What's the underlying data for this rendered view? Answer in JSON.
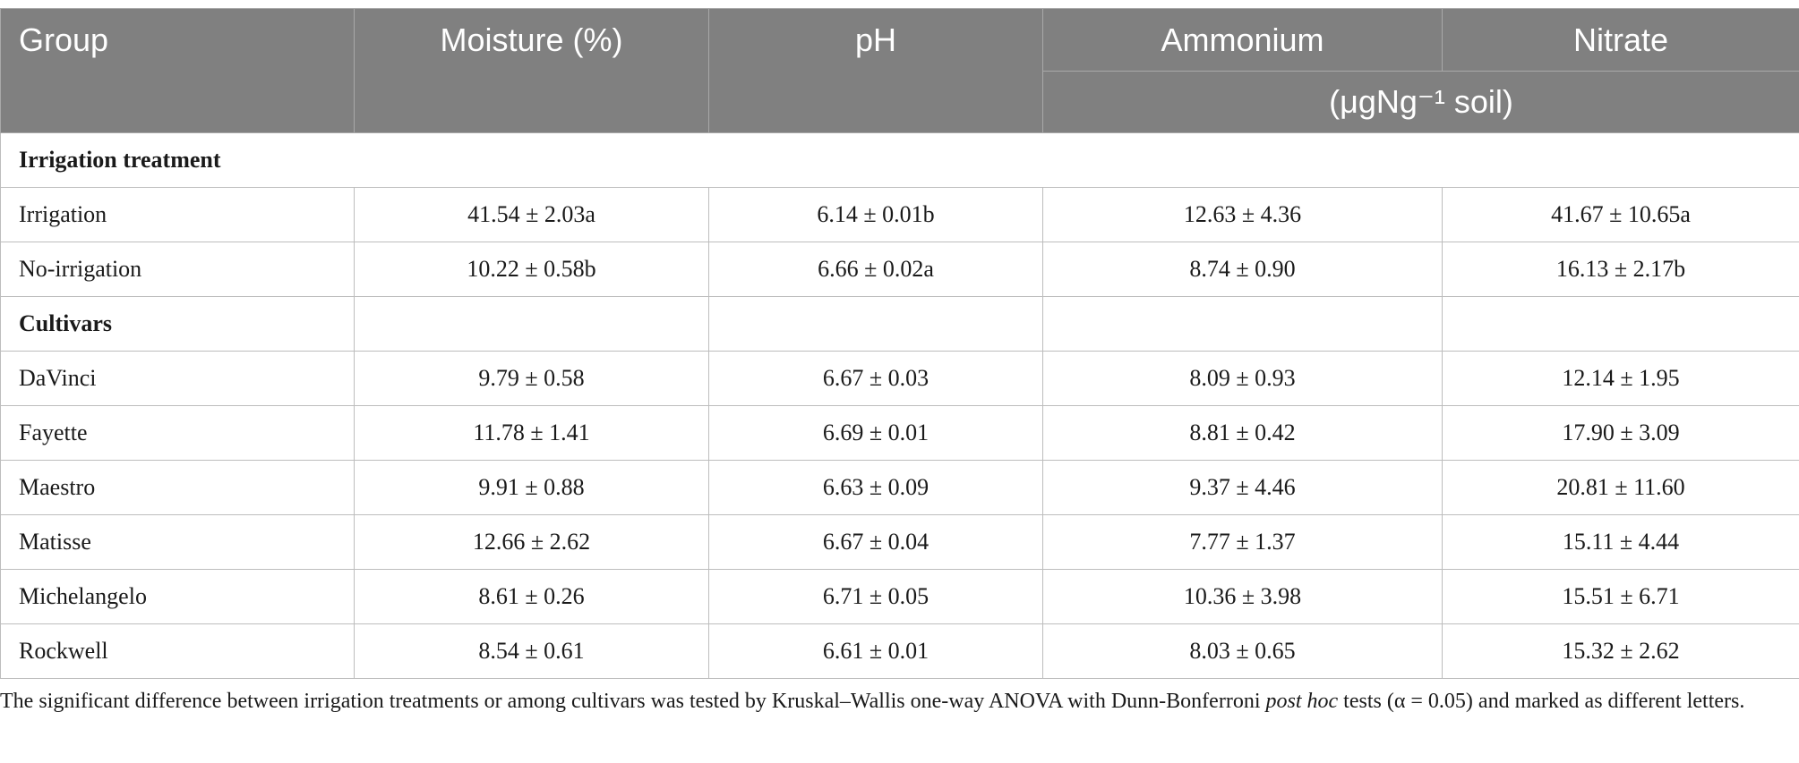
{
  "header": {
    "group": "Group",
    "moisture": "Moisture (%)",
    "ph": "pH",
    "ammonium": "Ammonium",
    "nitrate": "Nitrate",
    "unit": "(μgNg⁻¹ soil)"
  },
  "sections": [
    {
      "title": "Irrigation treatment",
      "rows": [
        [
          "Irrigation",
          "41.54 ± 2.03a",
          "6.14 ± 0.01b",
          "12.63 ± 4.36",
          "41.67 ± 10.65a"
        ],
        [
          "No-irrigation",
          "10.22 ± 0.58b",
          "6.66 ± 0.02a",
          "8.74 ± 0.90",
          "16.13 ± 2.17b"
        ]
      ]
    },
    {
      "title": "Cultivars",
      "rows": [
        [
          "DaVinci",
          "9.79 ± 0.58",
          "6.67 ± 0.03",
          "8.09 ± 0.93",
          "12.14 ± 1.95"
        ],
        [
          "Fayette",
          "11.78 ± 1.41",
          "6.69 ± 0.01",
          "8.81 ± 0.42",
          "17.90 ± 3.09"
        ],
        [
          "Maestro",
          "9.91 ± 0.88",
          "6.63 ± 0.09",
          "9.37 ± 4.46",
          "20.81 ± 11.60"
        ],
        [
          "Matisse",
          "12.66 ± 2.62",
          "6.67 ± 0.04",
          "7.77 ± 1.37",
          "15.11 ± 4.44"
        ],
        [
          "Michelangelo",
          "8.61 ± 0.26",
          "6.71 ± 0.05",
          "10.36 ± 3.98",
          "15.51 ± 6.71"
        ],
        [
          "Rockwell",
          "8.54 ± 0.61",
          "6.61 ± 0.01",
          "8.03 ± 0.65",
          "15.32 ± 2.62"
        ]
      ]
    }
  ],
  "footnote": {
    "before": "The significant difference between irrigation treatments or among cultivars was tested by Kruskal–Wallis one-way ANOVA with Dunn-Bonferroni ",
    "italic": "post hoc",
    "after": " tests (α = 0.05) and marked as different letters."
  }
}
